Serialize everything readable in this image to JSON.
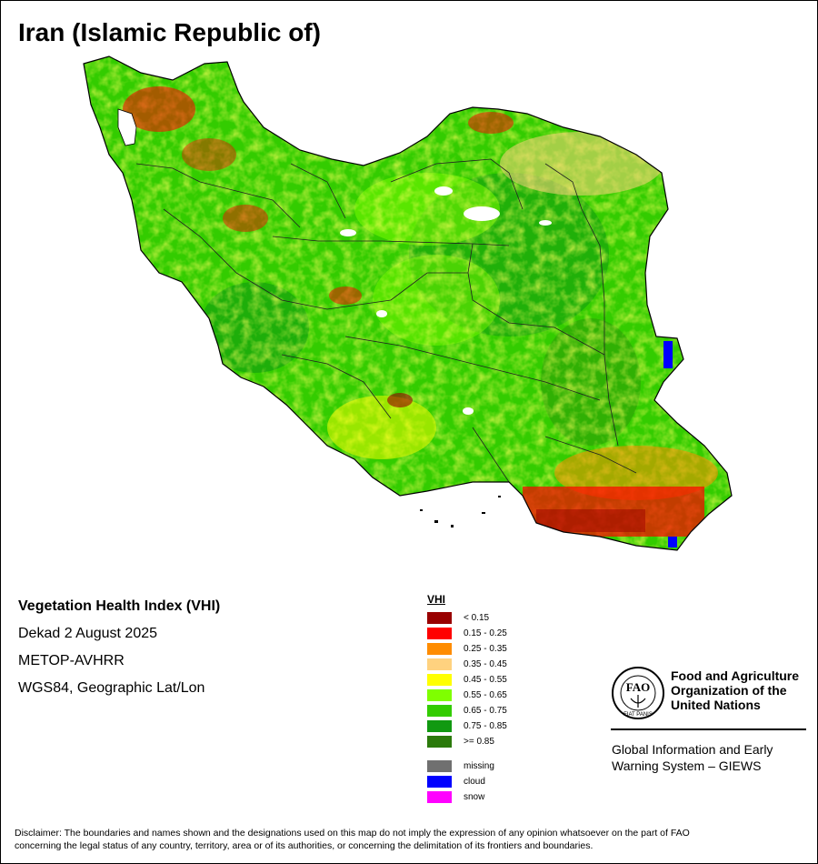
{
  "title": "Iran (Islamic Republic of)",
  "info": {
    "index_name": "Vegetation Health Index (VHI)",
    "period": "Dekad 2 August 2025",
    "sensor": "METOP-AVHRR",
    "projection": "WGS84, Geographic Lat/Lon"
  },
  "legend": {
    "title": "VHI",
    "classes": [
      {
        "label": "< 0.15",
        "color": "#990000"
      },
      {
        "label": "0.15 - 0.25",
        "color": "#ff0000"
      },
      {
        "label": "0.25 - 0.35",
        "color": "#ff8c00"
      },
      {
        "label": "0.35 - 0.45",
        "color": "#ffd27f"
      },
      {
        "label": "0.45 - 0.55",
        "color": "#ffff00"
      },
      {
        "label": "0.55 - 0.65",
        "color": "#7fff00"
      },
      {
        "label": "0.65 - 0.75",
        "color": "#33cc00"
      },
      {
        "label": "0.75 - 0.85",
        "color": "#119911"
      },
      {
        "label": ">= 0.85",
        "color": "#2b7a0b"
      }
    ],
    "special": [
      {
        "label": "missing",
        "color": "#707070"
      },
      {
        "label": "cloud",
        "color": "#0000ff"
      },
      {
        "label": "snow",
        "color": "#ff00ff"
      }
    ]
  },
  "logo": {
    "org_line1": "Food and Agriculture",
    "org_line2": "Organization of the",
    "org_line3": "United Nations",
    "emblem_text": "FAO",
    "emblem_motto": "FIAT PANIS",
    "system_line1": "Global Information and Early",
    "system_line2": "Warning System – GIEWS"
  },
  "disclaimer_line1": "Disclaimer: The boundaries and names shown and the designations used on this map do not imply the expression of any opinion whatsoever on the part of FAO",
  "disclaimer_line2": "concerning the legal status of any country, territory, area or of its authorities, or concerning the delimitation of its frontiers and boundaries."
}
